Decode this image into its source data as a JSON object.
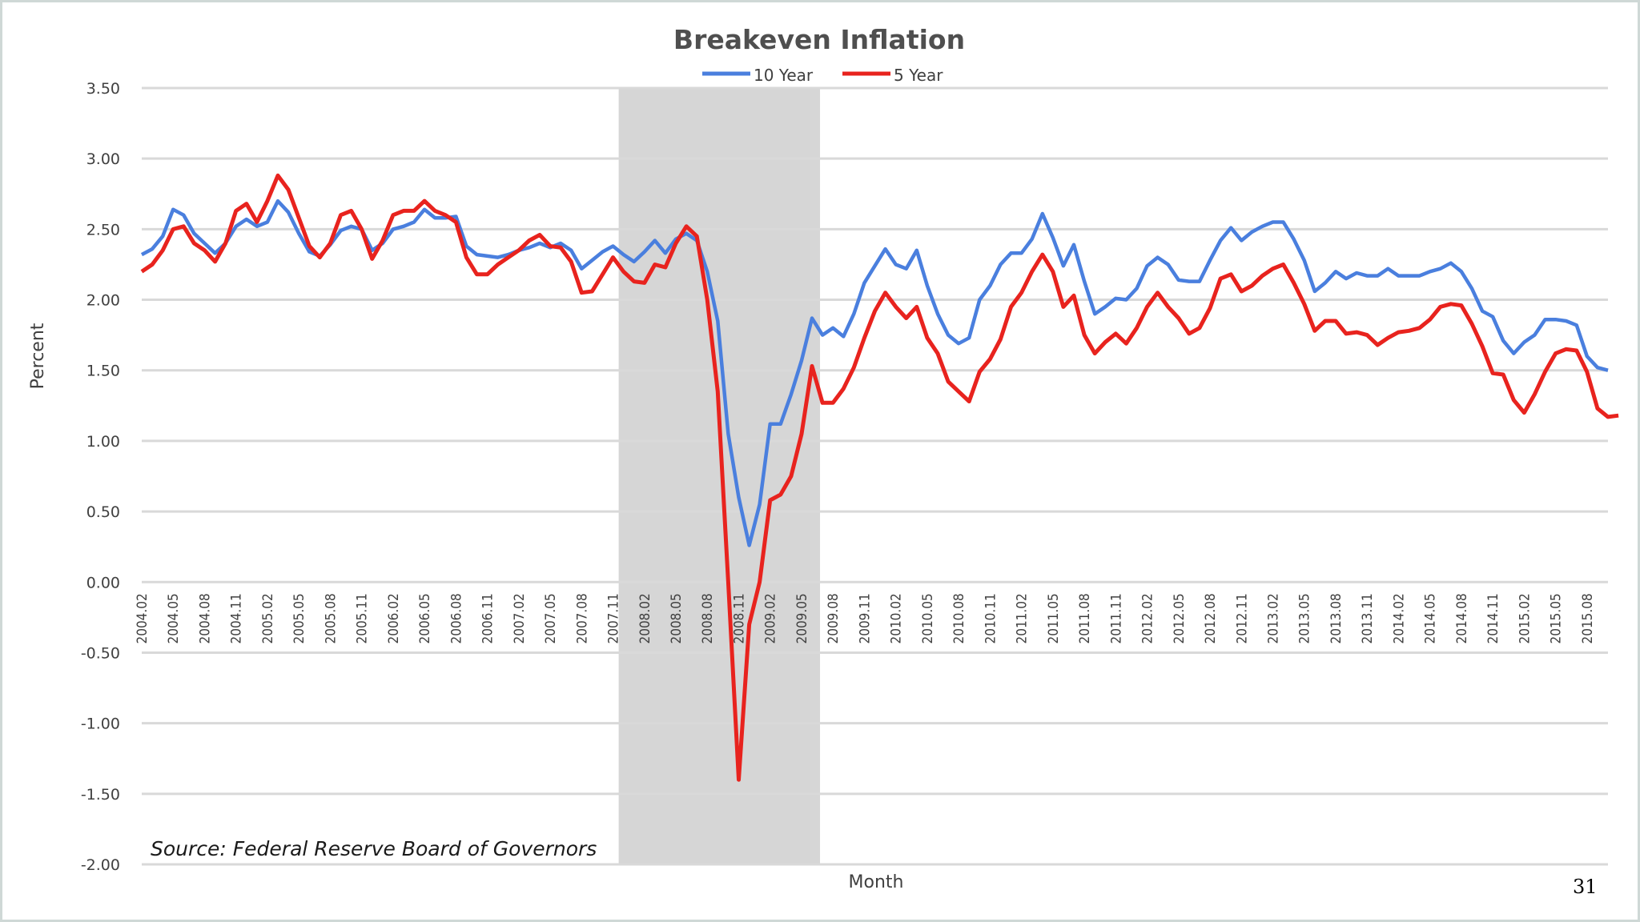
{
  "page": {
    "number": "31"
  },
  "chart_data": {
    "type": "line",
    "title": "Breakeven Inflation",
    "xlabel": "Month",
    "ylabel": "Percent",
    "ylim": [
      -2.0,
      3.5
    ],
    "yticks": [
      "3.50",
      "3.00",
      "2.50",
      "2.00",
      "1.50",
      "1.00",
      "0.50",
      "0.00",
      "-0.50",
      "-1.00",
      "-1.50",
      "-2.00"
    ],
    "gridlines": true,
    "legend_position": "top-center",
    "source": "Source: Federal Reserve Board of Governors",
    "recession_shading": {
      "start": "2007.12",
      "end": "2009.06"
    },
    "x_tick_labels": [
      "2004.02",
      "2004.05",
      "2004.08",
      "2004.11",
      "2005.02",
      "2005.05",
      "2005.08",
      "2005.11",
      "2006.02",
      "2006.05",
      "2006.08",
      "2006.11",
      "2007.02",
      "2007.05",
      "2007.08",
      "2007.11",
      "2008.02",
      "2008.05",
      "2008.08",
      "2008.11",
      "2009.02",
      "2009.05",
      "2009.08",
      "2009.11",
      "2010.02",
      "2010.05",
      "2010.08",
      "2010.11",
      "2011.02",
      "2011.05",
      "2011.08",
      "2011.11",
      "2012.02",
      "2012.05",
      "2012.08",
      "2012.11",
      "2013.02",
      "2013.05",
      "2013.08",
      "2013.11",
      "2014.02",
      "2014.05",
      "2014.08",
      "2014.11",
      "2015.02",
      "2015.05",
      "2015.08"
    ],
    "x_start": "2004.02",
    "x_end": "2015.10",
    "series": [
      {
        "name": "10 Year",
        "color": "#4a7fde",
        "values": [
          2.32,
          2.36,
          2.45,
          2.64,
          2.6,
          2.47,
          2.4,
          2.33,
          2.4,
          2.52,
          2.57,
          2.52,
          2.55,
          2.7,
          2.62,
          2.47,
          2.34,
          2.31,
          2.39,
          2.49,
          2.52,
          2.5,
          2.35,
          2.4,
          2.5,
          2.52,
          2.55,
          2.64,
          2.58,
          2.58,
          2.59,
          2.38,
          2.32,
          2.31,
          2.3,
          2.32,
          2.35,
          2.37,
          2.4,
          2.37,
          2.4,
          2.35,
          2.22,
          2.28,
          2.34,
          2.38,
          2.32,
          2.27,
          2.34,
          2.42,
          2.33,
          2.43,
          2.47,
          2.42,
          2.2,
          1.85,
          1.05,
          0.6,
          0.26,
          0.55,
          1.12,
          1.12,
          1.33,
          1.57,
          1.87,
          1.75,
          1.8,
          1.74,
          1.9,
          2.12,
          2.24,
          2.36,
          2.25,
          2.22,
          2.35,
          2.1,
          1.9,
          1.75,
          1.69,
          1.73,
          2.0,
          2.1,
          2.25,
          2.33,
          2.33,
          2.43,
          2.61,
          2.44,
          2.24,
          2.39,
          2.13,
          1.9,
          1.95,
          2.01,
          2.0,
          2.08,
          2.24,
          2.3,
          2.25,
          2.14,
          2.13,
          2.13,
          2.28,
          2.42,
          2.51,
          2.42,
          2.48,
          2.52,
          2.55,
          2.55,
          2.43,
          2.28,
          2.06,
          2.12,
          2.2,
          2.15,
          2.19,
          2.17,
          2.17,
          2.22,
          2.17,
          2.17,
          2.17,
          2.2,
          2.22,
          2.26,
          2.2,
          2.08,
          1.92,
          1.88,
          1.71,
          1.62,
          1.7,
          1.75,
          1.86,
          1.86,
          1.85,
          1.82,
          1.6,
          1.52,
          1.5
        ]
      },
      {
        "name": "5 Year",
        "color": "#e8231e",
        "values": [
          2.2,
          2.25,
          2.35,
          2.5,
          2.52,
          2.4,
          2.35,
          2.27,
          2.4,
          2.63,
          2.68,
          2.55,
          2.7,
          2.88,
          2.78,
          2.58,
          2.38,
          2.3,
          2.4,
          2.6,
          2.63,
          2.5,
          2.29,
          2.42,
          2.6,
          2.63,
          2.63,
          2.7,
          2.63,
          2.6,
          2.55,
          2.3,
          2.18,
          2.18,
          2.25,
          2.3,
          2.35,
          2.42,
          2.46,
          2.38,
          2.37,
          2.27,
          2.05,
          2.06,
          2.18,
          2.3,
          2.2,
          2.13,
          2.12,
          2.25,
          2.23,
          2.4,
          2.52,
          2.45,
          2.0,
          1.35,
          0.0,
          -1.4,
          -0.3,
          0.0,
          0.58,
          0.62,
          0.75,
          1.05,
          1.53,
          1.27,
          1.27,
          1.37,
          1.52,
          1.73,
          1.92,
          2.05,
          1.95,
          1.87,
          1.95,
          1.73,
          1.62,
          1.42,
          1.35,
          1.28,
          1.49,
          1.58,
          1.72,
          1.95,
          2.05,
          2.2,
          2.32,
          2.2,
          1.95,
          2.03,
          1.75,
          1.62,
          1.7,
          1.76,
          1.69,
          1.8,
          1.95,
          2.05,
          1.95,
          1.87,
          1.76,
          1.8,
          1.94,
          2.15,
          2.18,
          2.06,
          2.1,
          2.17,
          2.22,
          2.25,
          2.12,
          1.97,
          1.78,
          1.85,
          1.85,
          1.76,
          1.77,
          1.75,
          1.68,
          1.73,
          1.77,
          1.78,
          1.8,
          1.86,
          1.95,
          1.97,
          1.96,
          1.83,
          1.67,
          1.48,
          1.47,
          1.29,
          1.2,
          1.33,
          1.49,
          1.62,
          1.65,
          1.64,
          1.49,
          1.23,
          1.17,
          1.18
        ]
      }
    ]
  }
}
